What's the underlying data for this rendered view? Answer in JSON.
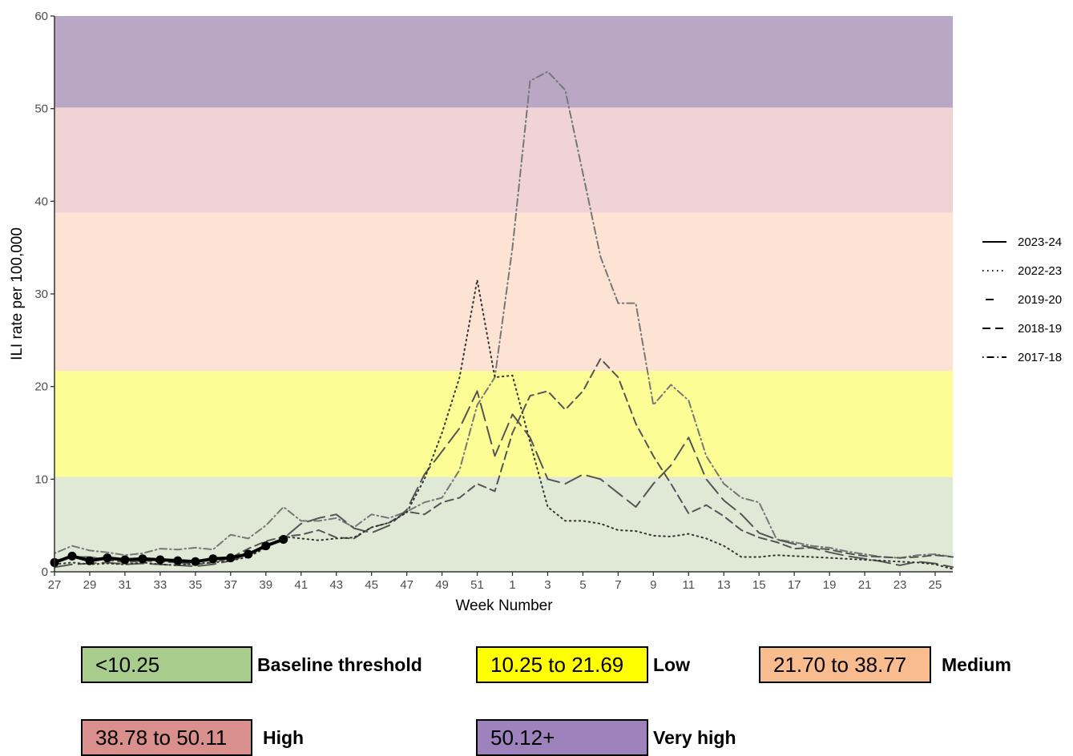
{
  "chart_data": {
    "type": "line",
    "xlabel": "Week Number",
    "ylabel": "ILI rate per 100,000",
    "ylim": [
      0,
      60
    ],
    "yticks": [
      0,
      10,
      20,
      30,
      40,
      50,
      60
    ],
    "weeks": [
      27,
      28,
      29,
      30,
      31,
      32,
      33,
      34,
      35,
      36,
      37,
      38,
      39,
      40,
      41,
      42,
      43,
      44,
      45,
      46,
      47,
      48,
      49,
      50,
      51,
      52,
      1,
      2,
      3,
      4,
      5,
      6,
      7,
      8,
      9,
      10,
      11,
      12,
      13,
      14,
      15,
      16,
      17,
      18,
      19,
      20,
      21,
      22,
      23,
      24,
      25,
      26
    ],
    "xtick_labels": [
      "27",
      "29",
      "31",
      "33",
      "35",
      "37",
      "39",
      "41",
      "43",
      "45",
      "47",
      "49",
      "51",
      "1",
      "3",
      "5",
      "7",
      "9",
      "11",
      "13",
      "15",
      "17",
      "19",
      "21",
      "23",
      "25"
    ],
    "bands": [
      {
        "from": 0,
        "to": 10.25,
        "color": "#dfe9d5"
      },
      {
        "from": 10.25,
        "to": 21.69,
        "color": "#fdfd96"
      },
      {
        "from": 21.69,
        "to": 38.77,
        "color": "#fde3d3"
      },
      {
        "from": 38.77,
        "to": 50.11,
        "color": "#f0d4d5"
      },
      {
        "from": 50.11,
        "to": 60,
        "color": "#b8a8c5"
      }
    ],
    "legend_position": "right",
    "series": [
      {
        "name": "2023-24",
        "style": "solid",
        "color": "#000000",
        "values": [
          1.0,
          1.7,
          1.2,
          1.5,
          1.3,
          1.4,
          1.3,
          1.2,
          1.1,
          1.4,
          1.5,
          1.9,
          2.8,
          3.5
        ]
      },
      {
        "name": "2022-23",
        "style": "dotted",
        "color": "#333333",
        "values": [
          0.8,
          1.0,
          0.8,
          0.9,
          0.8,
          1.0,
          0.8,
          0.7,
          0.9,
          1.0,
          1.2,
          1.6,
          2.6,
          3.8,
          3.6,
          3.4,
          3.6,
          3.7,
          4.8,
          5.3,
          6.4,
          10.0,
          15.0,
          21.0,
          31.5,
          21.0,
          21.2,
          14.0,
          7.0,
          5.5,
          5.5,
          5.2,
          4.5,
          4.4,
          3.9,
          3.8,
          4.1,
          3.6,
          2.8,
          1.6,
          1.6,
          1.8,
          1.7,
          1.6,
          1.5,
          1.4,
          1.3,
          1.2,
          1.1,
          1.0,
          0.8,
          0.3
        ]
      },
      {
        "name": "2019-20",
        "style": "longdash",
        "color": "#555555",
        "values": [
          0.5,
          0.8,
          0.9,
          1.0,
          0.8,
          0.9,
          0.8,
          0.7,
          0.6,
          0.8,
          1.2,
          1.8,
          2.8,
          3.6,
          5.2,
          5.8,
          6.2,
          4.7,
          4.2,
          5.0,
          6.7,
          10.5,
          13.0,
          15.5,
          19.5,
          12.5,
          17.0,
          14.5,
          10.0,
          9.5,
          10.5,
          10.0,
          8.5,
          7.0,
          9.5,
          11.5,
          14.5,
          10.0,
          7.7,
          6.2,
          4.2,
          3.5,
          3.0,
          2.6,
          2.1,
          1.7,
          1.4,
          1.1,
          0.7,
          1.1,
          0.9,
          0.5
        ]
      },
      {
        "name": "2018-19",
        "style": "dashed",
        "color": "#555555",
        "values": [
          1.2,
          1.6,
          1.6,
          1.3,
          1.0,
          1.2,
          1.1,
          1.0,
          0.8,
          1.0,
          1.5,
          2.5,
          3.3,
          3.8,
          4.0,
          4.5,
          3.7,
          3.6,
          4.8,
          5.3,
          6.5,
          6.2,
          7.5,
          8.0,
          9.5,
          8.7,
          15.0,
          19.0,
          19.5,
          17.5,
          19.5,
          23.0,
          21.0,
          16.0,
          12.5,
          9.5,
          6.3,
          7.2,
          6.0,
          4.5,
          3.7,
          3.2,
          2.5,
          2.6,
          2.4,
          2.0,
          1.7,
          1.6,
          1.5,
          1.6,
          1.8,
          1.6
        ]
      },
      {
        "name": "2017-18",
        "style": "dotdash",
        "color": "#777777",
        "values": [
          2.0,
          2.8,
          2.3,
          2.1,
          1.8,
          2.0,
          2.5,
          2.4,
          2.6,
          2.4,
          4.0,
          3.6,
          5.0,
          7.0,
          5.5,
          5.5,
          5.8,
          4.8,
          6.2,
          5.8,
          6.5,
          7.5,
          8.0,
          11.0,
          18.0,
          21.0,
          35.0,
          53.0,
          54.0,
          52.0,
          43.0,
          34.0,
          29.0,
          29.0,
          18.0,
          20.2,
          18.5,
          12.5,
          9.5,
          8.0,
          7.5,
          3.5,
          3.2,
          2.8,
          2.6,
          2.2,
          1.9,
          1.6,
          1.5,
          1.8,
          1.9,
          1.6
        ]
      }
    ]
  },
  "thresholds": [
    {
      "range": "<10.25",
      "label": "Baseline threshold",
      "color": "#a8cc8c"
    },
    {
      "range": "10.25 to 21.69",
      "label": "Low",
      "color": "#ffff00"
    },
    {
      "range": "21.70 to 38.77",
      "label": "Medium",
      "color": "#f9bc8e"
    },
    {
      "range": "38.78 to 50.11",
      "label": "High",
      "color": "#d9908c"
    },
    {
      "range": "50.12+",
      "label": "Very high",
      "color": "#9e82bb"
    }
  ]
}
